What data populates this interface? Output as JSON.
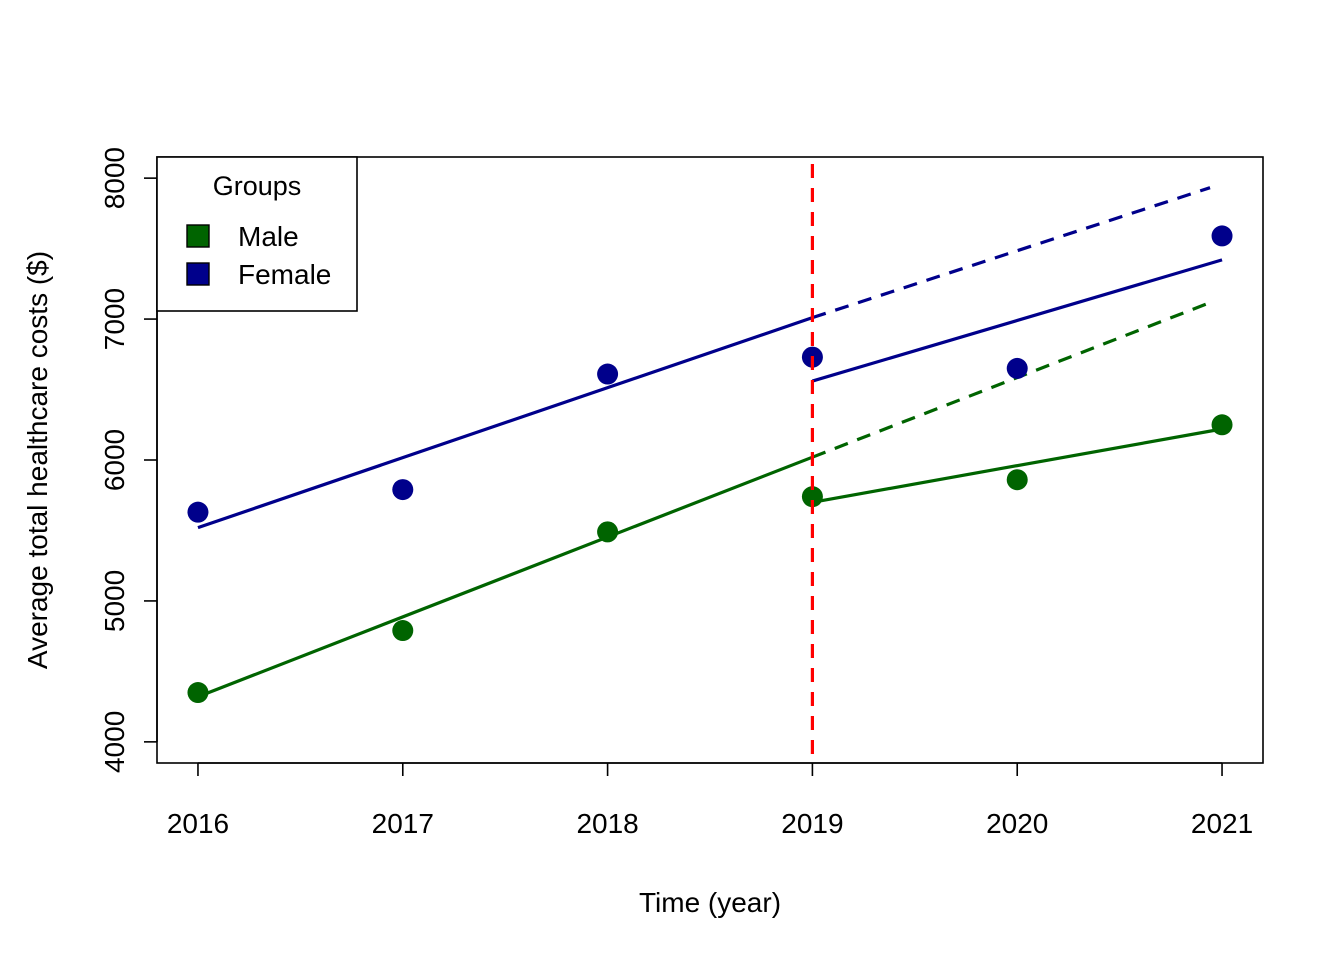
{
  "chart_data": {
    "type": "scatter",
    "title": "",
    "xlabel": "Time (year)",
    "ylabel": "Average total healthcare costs ($)",
    "x": [
      2016,
      2017,
      2018,
      2019,
      2020,
      2021
    ],
    "x_tick_labels": [
      "2016",
      "2017",
      "2018",
      "2019",
      "2020",
      "2021"
    ],
    "y_ticks": [
      4000,
      5000,
      6000,
      7000,
      8000
    ],
    "y_tick_labels": [
      "4000",
      "5000",
      "6000",
      "7000",
      "8000"
    ],
    "xlim": [
      2015.8,
      2021.2
    ],
    "ylim": [
      3850,
      8150
    ],
    "grid": false,
    "legend": {
      "title": "Groups",
      "position": "top-left",
      "entries": [
        "Male",
        "Female"
      ]
    },
    "series": [
      {
        "name": "Male",
        "color": "#006400",
        "points": [
          4350,
          4790,
          5490,
          5740,
          5860,
          6250
        ],
        "fit_pre": {
          "x": [
            2016,
            2019
          ],
          "y": [
            4320,
            6020
          ]
        },
        "fit_post": {
          "x": [
            2019,
            2021
          ],
          "y": [
            5700,
            6220
          ]
        },
        "counterfactual": {
          "x": [
            2019,
            2021
          ],
          "y": [
            6020,
            7150
          ]
        }
      },
      {
        "name": "Female",
        "color": "#00008B",
        "points": [
          5630,
          5790,
          6610,
          6730,
          6650,
          7590
        ],
        "fit_pre": {
          "x": [
            2016,
            2019
          ],
          "y": [
            5520,
            7010
          ]
        },
        "fit_post": {
          "x": [
            2019,
            2021
          ],
          "y": [
            6560,
            7420
          ]
        },
        "counterfactual": {
          "x": [
            2019,
            2021
          ],
          "y": [
            7010,
            7960
          ]
        }
      }
    ],
    "intervention": {
      "x": 2019,
      "color": "#FF0000",
      "style": "dashed"
    }
  }
}
